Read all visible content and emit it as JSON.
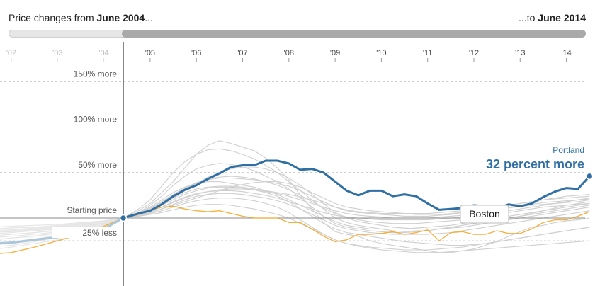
{
  "header": {
    "left_prefix": "Price changes from ",
    "left_date": "June 2004",
    "left_suffix": "...",
    "right_prefix": "...to ",
    "right_date": "June 2014"
  },
  "chart_data": {
    "type": "line",
    "x_ticks": [
      "'02",
      "'03",
      "'04",
      "'05",
      "'06",
      "'07",
      "'08",
      "'09",
      "'10",
      "'11",
      "'12",
      "'13",
      "'14"
    ],
    "x_range": [
      2001.5,
      2014.5
    ],
    "y_range": [
      -40,
      165
    ],
    "y_labels": [
      {
        "value": 150,
        "text": "150% more"
      },
      {
        "value": 100,
        "text": "100% more"
      },
      {
        "value": 50,
        "text": "50% more"
      },
      {
        "value": 0,
        "text": "Starting price"
      },
      {
        "value": -25,
        "text": "25% less"
      }
    ],
    "start_x": 2004.42,
    "grid": true,
    "highlight": {
      "name": "Portland",
      "annotation": "32 percent more",
      "color": "#2f6fa3",
      "x": [
        2001.5,
        2002.0,
        2002.5,
        2003.0,
        2003.5,
        2004.0,
        2004.42,
        2004.75,
        2005.0,
        2005.25,
        2005.5,
        2005.75,
        2006.0,
        2006.25,
        2006.5,
        2006.75,
        2007.0,
        2007.25,
        2007.5,
        2007.75,
        2008.0,
        2008.25,
        2008.5,
        2008.75,
        2009.0,
        2009.25,
        2009.5,
        2009.75,
        2010.0,
        2010.25,
        2010.5,
        2010.75,
        2011.0,
        2011.25,
        2011.5,
        2011.75,
        2012.0,
        2012.25,
        2012.5,
        2012.75,
        2013.0,
        2013.25,
        2013.5,
        2013.75,
        2014.0,
        2014.25,
        2014.5
      ],
      "y": [
        -28,
        -27,
        -24,
        -21,
        -18,
        -12,
        0,
        5,
        8,
        15,
        24,
        31,
        36,
        43,
        49,
        56,
        58,
        58,
        63,
        63,
        60,
        53,
        54,
        50,
        40,
        30,
        25,
        30,
        30,
        24,
        26,
        24,
        16,
        9,
        10,
        11,
        14,
        13,
        10,
        15,
        13,
        16,
        23,
        29,
        33,
        32,
        46
      ]
    },
    "compare": {
      "name": "Boston",
      "color": "#f5a623",
      "x": [
        2001.5,
        2002.0,
        2002.5,
        2003.0,
        2003.5,
        2004.0,
        2004.42,
        2004.75,
        2005.0,
        2005.25,
        2005.5,
        2005.75,
        2006.0,
        2006.25,
        2006.5,
        2006.75,
        2007.0,
        2007.25,
        2007.5,
        2007.75,
        2008.0,
        2008.25,
        2008.5,
        2008.75,
        2009.0,
        2009.25,
        2009.5,
        2009.75,
        2010.0,
        2010.25,
        2010.5,
        2010.75,
        2011.0,
        2011.25,
        2011.5,
        2011.75,
        2012.0,
        2012.25,
        2012.5,
        2012.75,
        2013.0,
        2013.25,
        2013.5,
        2013.75,
        2014.0,
        2014.25,
        2014.5
      ],
      "y": [
        -40,
        -38,
        -32,
        -25,
        -18,
        -9,
        0,
        4,
        9,
        12,
        13,
        10,
        8,
        7,
        8,
        5,
        2,
        0,
        0,
        0,
        -5,
        -5,
        -12,
        -20,
        -26,
        -24,
        -18,
        -18,
        -17,
        -15,
        -18,
        -16,
        -13,
        -25,
        -16,
        -15,
        -18,
        -18,
        -14,
        -17,
        -17,
        -12,
        -5,
        -2,
        -2,
        2,
        7
      ]
    },
    "background_series": [
      {
        "y": [
          -20,
          -18,
          -16,
          -14,
          -10,
          -6,
          0,
          8,
          16,
          28,
          40,
          55,
          70,
          80,
          85,
          82,
          78,
          74,
          66,
          55,
          42,
          25,
          10,
          -5,
          -15,
          -18,
          -20,
          -25,
          -28,
          -30,
          -32,
          -34,
          -36,
          -38,
          -38,
          -36,
          -34,
          -30,
          -26,
          -20,
          -15,
          -10,
          -8,
          -5,
          -3,
          -2,
          0
        ]
      },
      {
        "y": [
          -25,
          -22,
          -20,
          -16,
          -12,
          -7,
          0,
          10,
          20,
          35,
          50,
          62,
          70,
          75,
          76,
          74,
          70,
          65,
          58,
          50,
          40,
          30,
          20,
          10,
          0,
          -5,
          -8,
          -10,
          -12,
          -14,
          -15,
          -14,
          -14,
          -12,
          -10,
          -8,
          -6,
          -4,
          -2,
          0,
          2,
          4,
          6,
          8,
          10,
          12,
          14
        ]
      },
      {
        "y": [
          -15,
          -14,
          -12,
          -10,
          -7,
          -4,
          0,
          6,
          14,
          24,
          36,
          46,
          54,
          58,
          60,
          59,
          56,
          52,
          46,
          40,
          32,
          22,
          12,
          2,
          -6,
          -10,
          -12,
          -14,
          -15,
          -16,
          -16,
          -15,
          -14,
          -12,
          -10,
          -8,
          -6,
          -4,
          -2,
          0,
          2,
          5,
          8,
          11,
          14,
          16,
          18
        ]
      },
      {
        "y": [
          -30,
          -28,
          -25,
          -22,
          -17,
          -9,
          0,
          6,
          12,
          20,
          28,
          34,
          38,
          40,
          40,
          38,
          36,
          34,
          30,
          26,
          20,
          14,
          8,
          2,
          -4,
          -8,
          -10,
          -12,
          -12,
          -12,
          -12,
          -11,
          -10,
          -9,
          -8,
          -6,
          -4,
          -2,
          0,
          2,
          4,
          6,
          8,
          10,
          12,
          14,
          16
        ]
      },
      {
        "y": [
          -22,
          -20,
          -18,
          -15,
          -11,
          -6,
          0,
          5,
          10,
          17,
          25,
          32,
          38,
          42,
          44,
          44,
          43,
          42,
          40,
          38,
          35,
          30,
          24,
          18,
          12,
          8,
          6,
          5,
          4,
          3,
          2,
          2,
          2,
          3,
          4,
          6,
          8,
          10,
          12,
          14,
          16,
          18,
          20,
          22,
          24,
          25,
          26
        ]
      },
      {
        "y": [
          -18,
          -16,
          -14,
          -12,
          -9,
          -5,
          0,
          4,
          8,
          14,
          20,
          26,
          30,
          33,
          34,
          34,
          33,
          31,
          28,
          24,
          18,
          10,
          2,
          -6,
          -12,
          -16,
          -18,
          -20,
          -22,
          -24,
          -26,
          -27,
          -28,
          -29,
          -30,
          -30,
          -29,
          -28,
          -26,
          -24,
          -22,
          -20,
          -18,
          -16,
          -14,
          -12,
          -10
        ]
      },
      {
        "y": [
          -35,
          -32,
          -28,
          -24,
          -18,
          -10,
          0,
          3,
          6,
          10,
          15,
          20,
          24,
          26,
          27,
          27,
          26,
          24,
          22,
          19,
          15,
          10,
          4,
          -2,
          -8,
          -12,
          -14,
          -16,
          -17,
          -18,
          -18,
          -18,
          -18,
          -17,
          -16,
          -14,
          -12,
          -10,
          -8,
          -6,
          -4,
          -2,
          0,
          2,
          4,
          6,
          8
        ]
      },
      {
        "y": [
          -12,
          -11,
          -10,
          -8,
          -6,
          -3,
          0,
          4,
          9,
          15,
          22,
          28,
          32,
          34,
          35,
          35,
          34,
          32,
          30,
          28,
          26,
          23,
          20,
          16,
          12,
          9,
          7,
          6,
          5,
          5,
          5,
          5,
          5,
          6,
          7,
          8,
          9,
          10,
          11,
          12,
          13,
          14,
          15,
          16,
          17,
          18,
          20
        ]
      },
      {
        "y": [
          -28,
          -26,
          -23,
          -19,
          -14,
          -8,
          0,
          2,
          5,
          8,
          12,
          16,
          19,
          21,
          22,
          22,
          21,
          19,
          16,
          12,
          6,
          -2,
          -10,
          -18,
          -24,
          -28,
          -30,
          -32,
          -33,
          -34,
          -35,
          -35,
          -35,
          -34,
          -33,
          -32,
          -30,
          -28,
          -26,
          -24,
          -22,
          -20,
          -18,
          -16,
          -14,
          -12,
          -10
        ]
      },
      {
        "y": [
          -20,
          -18,
          -16,
          -13,
          -10,
          -5,
          0,
          3,
          7,
          12,
          18,
          23,
          27,
          29,
          30,
          30,
          29,
          27,
          25,
          22,
          18,
          14,
          10,
          6,
          3,
          1,
          0,
          -1,
          -2,
          -2,
          -2,
          -2,
          -2,
          -1,
          0,
          1,
          2,
          4,
          6,
          8,
          10,
          12,
          14,
          16,
          18,
          20,
          22
        ]
      },
      {
        "y": [
          -10,
          -9,
          -8,
          -7,
          -5,
          -3,
          0,
          3,
          6,
          10,
          14,
          18,
          22,
          26,
          30,
          34,
          37,
          39,
          40,
          40,
          38,
          34,
          28,
          22,
          16,
          12,
          10,
          8,
          7,
          6,
          5,
          4,
          4,
          4,
          5,
          6,
          8,
          10,
          12,
          14,
          16,
          18,
          20,
          21,
          22,
          23,
          24
        ]
      },
      {
        "y": [
          -32,
          -30,
          -26,
          -21,
          -15,
          -8,
          0,
          4,
          8,
          14,
          22,
          30,
          38,
          45,
          50,
          54,
          56,
          56,
          54,
          50,
          44,
          36,
          26,
          16,
          6,
          0,
          -4,
          -6,
          -8,
          -10,
          -11,
          -12,
          -12,
          -12,
          -11,
          -10,
          -8,
          -6,
          -4,
          -2,
          0,
          2,
          4,
          6,
          8,
          10,
          12
        ]
      },
      {
        "y": [
          -16,
          -15,
          -13,
          -11,
          -8,
          -4,
          0,
          2,
          4,
          6,
          9,
          12,
          14,
          15,
          15,
          14,
          12,
          10,
          7,
          4,
          0,
          -6,
          -12,
          -18,
          -24,
          -28,
          -31,
          -33,
          -35,
          -36,
          -37,
          -38,
          -38,
          -38,
          -37,
          -36,
          -35,
          -34,
          -33,
          -32,
          -31,
          -30,
          -29,
          -28,
          -27,
          -26,
          -25
        ]
      },
      {
        "y": [
          -24,
          -22,
          -20,
          -17,
          -13,
          -7,
          0,
          5,
          11,
          18,
          26,
          33,
          39,
          43,
          45,
          46,
          45,
          43,
          40,
          36,
          31,
          25,
          18,
          11,
          5,
          1,
          -2,
          -4,
          -5,
          -6,
          -6,
          -6,
          -5,
          -4,
          -3,
          -2,
          0,
          2,
          4,
          6,
          8,
          10,
          12,
          13,
          14,
          15,
          16
        ]
      },
      {
        "y": [
          -14,
          -13,
          -11,
          -9,
          -7,
          -4,
          0,
          3,
          7,
          12,
          17,
          22,
          26,
          29,
          31,
          32,
          32,
          31,
          29,
          27,
          24,
          20,
          16,
          12,
          8,
          5,
          3,
          2,
          1,
          0,
          0,
          0,
          0,
          1,
          2,
          3,
          5,
          7,
          9,
          11,
          13,
          15,
          17,
          18,
          19,
          20,
          21
        ]
      }
    ]
  }
}
